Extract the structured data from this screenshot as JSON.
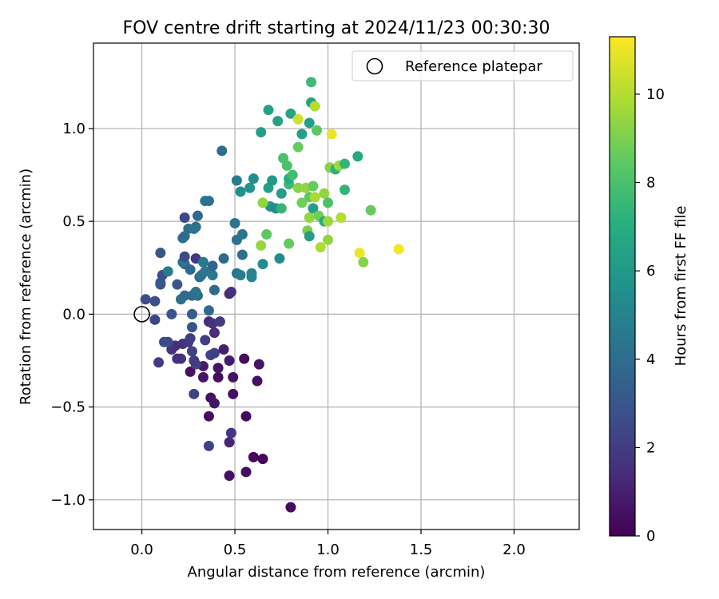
{
  "chart_data": {
    "type": "scatter",
    "title": "FOV centre drift starting at 2024/11/23 00:30:30",
    "xlabel": "Angular distance from reference (arcmin)",
    "ylabel": "Rotation from reference (arcmin)",
    "xlim": [
      -0.26,
      2.35
    ],
    "ylim": [
      -1.16,
      1.46
    ],
    "xticks": [
      0.0,
      0.5,
      1.0,
      1.5,
      2.0
    ],
    "xtick_labels": [
      "0.0",
      "0.5",
      "1.0",
      "1.5",
      "2.0"
    ],
    "yticks": [
      -1.0,
      -0.5,
      0.0,
      0.5,
      1.0
    ],
    "ytick_labels": [
      "−1.0",
      "−0.5",
      "0.0",
      "0.5",
      "1.0"
    ],
    "grid": true,
    "legend": {
      "position": "top-right",
      "label": "Reference platepar"
    },
    "reference_point": {
      "x": 0.0,
      "y": 0.0
    },
    "colorbar": {
      "label": "Hours from first FF file",
      "colormap": "viridis",
      "range": [
        0,
        11.3
      ],
      "ticks": [
        0,
        2,
        4,
        6,
        8,
        10
      ],
      "tick_labels": [
        "0",
        "2",
        "4",
        "6",
        "8",
        "10"
      ]
    },
    "points": [
      {
        "x": 0.8,
        "y": -1.04,
        "h": 0.3
      },
      {
        "x": 0.47,
        "y": -0.87,
        "h": 0.5
      },
      {
        "x": 0.56,
        "y": -0.85,
        "h": 0.4
      },
      {
        "x": 0.6,
        "y": -0.77,
        "h": 0.3
      },
      {
        "x": 0.65,
        "y": -0.78,
        "h": 0.2
      },
      {
        "x": 0.47,
        "y": -0.69,
        "h": 1.2
      },
      {
        "x": 0.48,
        "y": -0.64,
        "h": 1.8
      },
      {
        "x": 0.36,
        "y": -0.71,
        "h": 2.2
      },
      {
        "x": 0.36,
        "y": -0.55,
        "h": 0.4
      },
      {
        "x": 0.56,
        "y": -0.55,
        "h": 0.3
      },
      {
        "x": 0.37,
        "y": -0.45,
        "h": 0.6
      },
      {
        "x": 0.39,
        "y": -0.48,
        "h": 0.7
      },
      {
        "x": 0.28,
        "y": -0.43,
        "h": 2.3
      },
      {
        "x": 0.49,
        "y": -0.43,
        "h": 0.5
      },
      {
        "x": 0.62,
        "y": -0.36,
        "h": 0.5
      },
      {
        "x": 0.33,
        "y": -0.34,
        "h": 0.6
      },
      {
        "x": 0.41,
        "y": -0.34,
        "h": 0.4
      },
      {
        "x": 0.49,
        "y": -0.34,
        "h": 0.6
      },
      {
        "x": 0.26,
        "y": -0.31,
        "h": 0.5
      },
      {
        "x": 0.41,
        "y": -0.29,
        "h": 0.6
      },
      {
        "x": 0.33,
        "y": -0.28,
        "h": 0.8
      },
      {
        "x": 0.29,
        "y": -0.27,
        "h": 2.2
      },
      {
        "x": 0.63,
        "y": -0.27,
        "h": 0.6
      },
      {
        "x": 0.47,
        "y": -0.25,
        "h": 0.8
      },
      {
        "x": 0.55,
        "y": -0.24,
        "h": 0.4
      },
      {
        "x": 0.09,
        "y": -0.26,
        "h": 1.9
      },
      {
        "x": 0.21,
        "y": -0.24,
        "h": 1.7
      },
      {
        "x": 0.19,
        "y": -0.24,
        "h": 1.5
      },
      {
        "x": 0.28,
        "y": -0.25,
        "h": 1.9
      },
      {
        "x": 0.37,
        "y": -0.22,
        "h": 2.3
      },
      {
        "x": 0.39,
        "y": -0.21,
        "h": 2.1
      },
      {
        "x": 0.44,
        "y": -0.19,
        "h": 1.0
      },
      {
        "x": 0.16,
        "y": -0.19,
        "h": 1.6
      },
      {
        "x": 0.18,
        "y": -0.17,
        "h": 1.5
      },
      {
        "x": 0.27,
        "y": -0.2,
        "h": 2.2
      },
      {
        "x": 0.22,
        "y": -0.16,
        "h": 1.6
      },
      {
        "x": 0.12,
        "y": -0.15,
        "h": 2.6
      },
      {
        "x": 0.14,
        "y": -0.15,
        "h": 2.6
      },
      {
        "x": 0.25,
        "y": -0.15,
        "h": 1.8
      },
      {
        "x": 0.34,
        "y": -0.14,
        "h": 2.0
      },
      {
        "x": 0.26,
        "y": -0.13,
        "h": 2.1
      },
      {
        "x": 0.39,
        "y": -0.1,
        "h": 1.4
      },
      {
        "x": 0.27,
        "y": -0.07,
        "h": 2.9
      },
      {
        "x": 0.36,
        "y": -0.04,
        "h": 1.3
      },
      {
        "x": 0.38,
        "y": -0.05,
        "h": 1.6
      },
      {
        "x": 0.42,
        "y": -0.04,
        "h": 1.9
      },
      {
        "x": 0.07,
        "y": -0.03,
        "h": 2.3
      },
      {
        "x": 0.16,
        "y": 0.0,
        "h": 2.9
      },
      {
        "x": 0.27,
        "y": 0.0,
        "h": 3.3
      },
      {
        "x": 0.36,
        "y": 0.02,
        "h": 3.9
      },
      {
        "x": 0.02,
        "y": 0.08,
        "h": 2.6
      },
      {
        "x": 0.07,
        "y": 0.07,
        "h": 2.8
      },
      {
        "x": 0.21,
        "y": 0.08,
        "h": 4.1
      },
      {
        "x": 0.23,
        "y": 0.1,
        "h": 3.9
      },
      {
        "x": 0.27,
        "y": 0.1,
        "h": 3.9
      },
      {
        "x": 0.3,
        "y": 0.1,
        "h": 4.0
      },
      {
        "x": 0.39,
        "y": 0.13,
        "h": 3.9
      },
      {
        "x": 0.29,
        "y": 0.12,
        "h": 4.3
      },
      {
        "x": 0.47,
        "y": 0.11,
        "h": 1.3
      },
      {
        "x": 0.48,
        "y": 0.12,
        "h": 1.5
      },
      {
        "x": 0.19,
        "y": 0.16,
        "h": 3.0
      },
      {
        "x": 0.1,
        "y": 0.16,
        "h": 3.1
      },
      {
        "x": 0.1,
        "y": 0.17,
        "h": 3.0
      },
      {
        "x": 0.11,
        "y": 0.21,
        "h": 2.7
      },
      {
        "x": 0.14,
        "y": 0.23,
        "h": 4.6
      },
      {
        "x": 0.31,
        "y": 0.2,
        "h": 3.9
      },
      {
        "x": 0.32,
        "y": 0.21,
        "h": 4.2
      },
      {
        "x": 0.34,
        "y": 0.23,
        "h": 4.4
      },
      {
        "x": 0.38,
        "y": 0.21,
        "h": 4.5
      },
      {
        "x": 0.51,
        "y": 0.22,
        "h": 4.5
      },
      {
        "x": 0.53,
        "y": 0.21,
        "h": 4.7
      },
      {
        "x": 0.59,
        "y": 0.22,
        "h": 5.0
      },
      {
        "x": 0.59,
        "y": 0.2,
        "h": 5.2
      },
      {
        "x": 0.65,
        "y": 0.27,
        "h": 5.4
      },
      {
        "x": 0.26,
        "y": 0.24,
        "h": 3.8
      },
      {
        "x": 0.23,
        "y": 0.27,
        "h": 3.5
      },
      {
        "x": 0.22,
        "y": 0.28,
        "h": 4.3
      },
      {
        "x": 0.29,
        "y": 0.3,
        "h": 1.8
      },
      {
        "x": 0.23,
        "y": 0.31,
        "h": 2.5
      },
      {
        "x": 0.33,
        "y": 0.28,
        "h": 4.6
      },
      {
        "x": 0.38,
        "y": 0.26,
        "h": 3.6
      },
      {
        "x": 0.44,
        "y": 0.3,
        "h": 3.9
      },
      {
        "x": 0.1,
        "y": 0.33,
        "h": 3.0
      },
      {
        "x": 0.54,
        "y": 0.32,
        "h": 4.2
      },
      {
        "x": 0.74,
        "y": 0.3,
        "h": 5.4
      },
      {
        "x": 0.64,
        "y": 0.37,
        "h": 9.5
      },
      {
        "x": 0.67,
        "y": 0.43,
        "h": 8.4
      },
      {
        "x": 0.79,
        "y": 0.38,
        "h": 8.6
      },
      {
        "x": 0.51,
        "y": 0.4,
        "h": 4.1
      },
      {
        "x": 0.54,
        "y": 0.43,
        "h": 4.4
      },
      {
        "x": 0.22,
        "y": 0.41,
        "h": 4.2
      },
      {
        "x": 0.23,
        "y": 0.42,
        "h": 4.0
      },
      {
        "x": 0.25,
        "y": 0.46,
        "h": 4.0
      },
      {
        "x": 0.29,
        "y": 0.47,
        "h": 4.1
      },
      {
        "x": 0.28,
        "y": 0.46,
        "h": 4.3
      },
      {
        "x": 0.23,
        "y": 0.52,
        "h": 2.5
      },
      {
        "x": 0.3,
        "y": 0.53,
        "h": 3.9
      },
      {
        "x": 0.5,
        "y": 0.49,
        "h": 4.3
      },
      {
        "x": 0.34,
        "y": 0.61,
        "h": 4.4
      },
      {
        "x": 0.36,
        "y": 0.61,
        "h": 4.2
      },
      {
        "x": 0.43,
        "y": 0.88,
        "h": 4.0
      },
      {
        "x": 0.51,
        "y": 0.72,
        "h": 4.6
      },
      {
        "x": 0.53,
        "y": 0.66,
        "h": 5.6
      },
      {
        "x": 0.58,
        "y": 0.68,
        "h": 5.8
      },
      {
        "x": 0.6,
        "y": 0.73,
        "h": 5.5
      },
      {
        "x": 0.64,
        "y": 0.98,
        "h": 6.3
      },
      {
        "x": 0.68,
        "y": 1.1,
        "h": 6.5
      },
      {
        "x": 0.73,
        "y": 1.04,
        "h": 6.5
      },
      {
        "x": 0.68,
        "y": 0.68,
        "h": 6.4
      },
      {
        "x": 0.7,
        "y": 0.72,
        "h": 6.0
      },
      {
        "x": 0.69,
        "y": 0.58,
        "h": 5.8
      },
      {
        "x": 0.72,
        "y": 0.57,
        "h": 5.6
      },
      {
        "x": 0.65,
        "y": 0.6,
        "h": 9.4
      },
      {
        "x": 0.75,
        "y": 0.57,
        "h": 7.4
      },
      {
        "x": 0.75,
        "y": 0.65,
        "h": 6.2
      },
      {
        "x": 0.76,
        "y": 0.84,
        "h": 8.0
      },
      {
        "x": 0.78,
        "y": 0.8,
        "h": 8.0
      },
      {
        "x": 0.79,
        "y": 0.7,
        "h": 7.6
      },
      {
        "x": 0.79,
        "y": 0.73,
        "h": 7.0
      },
      {
        "x": 0.81,
        "y": 0.75,
        "h": 7.8
      },
      {
        "x": 0.8,
        "y": 1.08,
        "h": 6.6
      },
      {
        "x": 0.84,
        "y": 1.05,
        "h": 10.5
      },
      {
        "x": 0.84,
        "y": 0.9,
        "h": 8.6
      },
      {
        "x": 0.86,
        "y": 0.97,
        "h": 6.4
      },
      {
        "x": 0.84,
        "y": 0.68,
        "h": 9.2
      },
      {
        "x": 0.86,
        "y": 0.6,
        "h": 8.8
      },
      {
        "x": 0.88,
        "y": 0.68,
        "h": 9.4
      },
      {
        "x": 0.9,
        "y": 0.63,
        "h": 8.5
      },
      {
        "x": 0.9,
        "y": 0.52,
        "h": 9.4
      },
      {
        "x": 0.89,
        "y": 0.45,
        "h": 9.0
      },
      {
        "x": 0.9,
        "y": 0.42,
        "h": 6.2
      },
      {
        "x": 0.91,
        "y": 1.25,
        "h": 7.6
      },
      {
        "x": 0.91,
        "y": 1.14,
        "h": 6.6
      },
      {
        "x": 0.9,
        "y": 1.03,
        "h": 6.4
      },
      {
        "x": 0.93,
        "y": 1.12,
        "h": 10.0
      },
      {
        "x": 0.94,
        "y": 0.99,
        "h": 8.4
      },
      {
        "x": 0.92,
        "y": 0.69,
        "h": 8.6
      },
      {
        "x": 0.92,
        "y": 0.57,
        "h": 6.4
      },
      {
        "x": 0.93,
        "y": 0.63,
        "h": 9.8
      },
      {
        "x": 0.95,
        "y": 0.53,
        "h": 8.8
      },
      {
        "x": 0.96,
        "y": 0.36,
        "h": 9.9
      },
      {
        "x": 0.98,
        "y": 0.5,
        "h": 6.8
      },
      {
        "x": 0.98,
        "y": 0.65,
        "h": 9.4
      },
      {
        "x": 1.0,
        "y": 0.6,
        "h": 8.0
      },
      {
        "x": 1.0,
        "y": 0.5,
        "h": 9.6
      },
      {
        "x": 1.0,
        "y": 0.4,
        "h": 9.4
      },
      {
        "x": 1.01,
        "y": 0.79,
        "h": 9.2
      },
      {
        "x": 1.02,
        "y": 0.97,
        "h": 11.0
      },
      {
        "x": 1.04,
        "y": 0.78,
        "h": 7.2
      },
      {
        "x": 1.06,
        "y": 0.8,
        "h": 9.6
      },
      {
        "x": 1.07,
        "y": 0.52,
        "h": 10.0
      },
      {
        "x": 1.09,
        "y": 0.81,
        "h": 7.4
      },
      {
        "x": 1.09,
        "y": 0.67,
        "h": 7.4
      },
      {
        "x": 1.16,
        "y": 0.85,
        "h": 6.8
      },
      {
        "x": 1.17,
        "y": 0.33,
        "h": 11.0
      },
      {
        "x": 1.19,
        "y": 0.28,
        "h": 9.2
      },
      {
        "x": 1.23,
        "y": 0.56,
        "h": 8.6
      },
      {
        "x": 1.38,
        "y": 0.35,
        "h": 11.2
      }
    ]
  }
}
